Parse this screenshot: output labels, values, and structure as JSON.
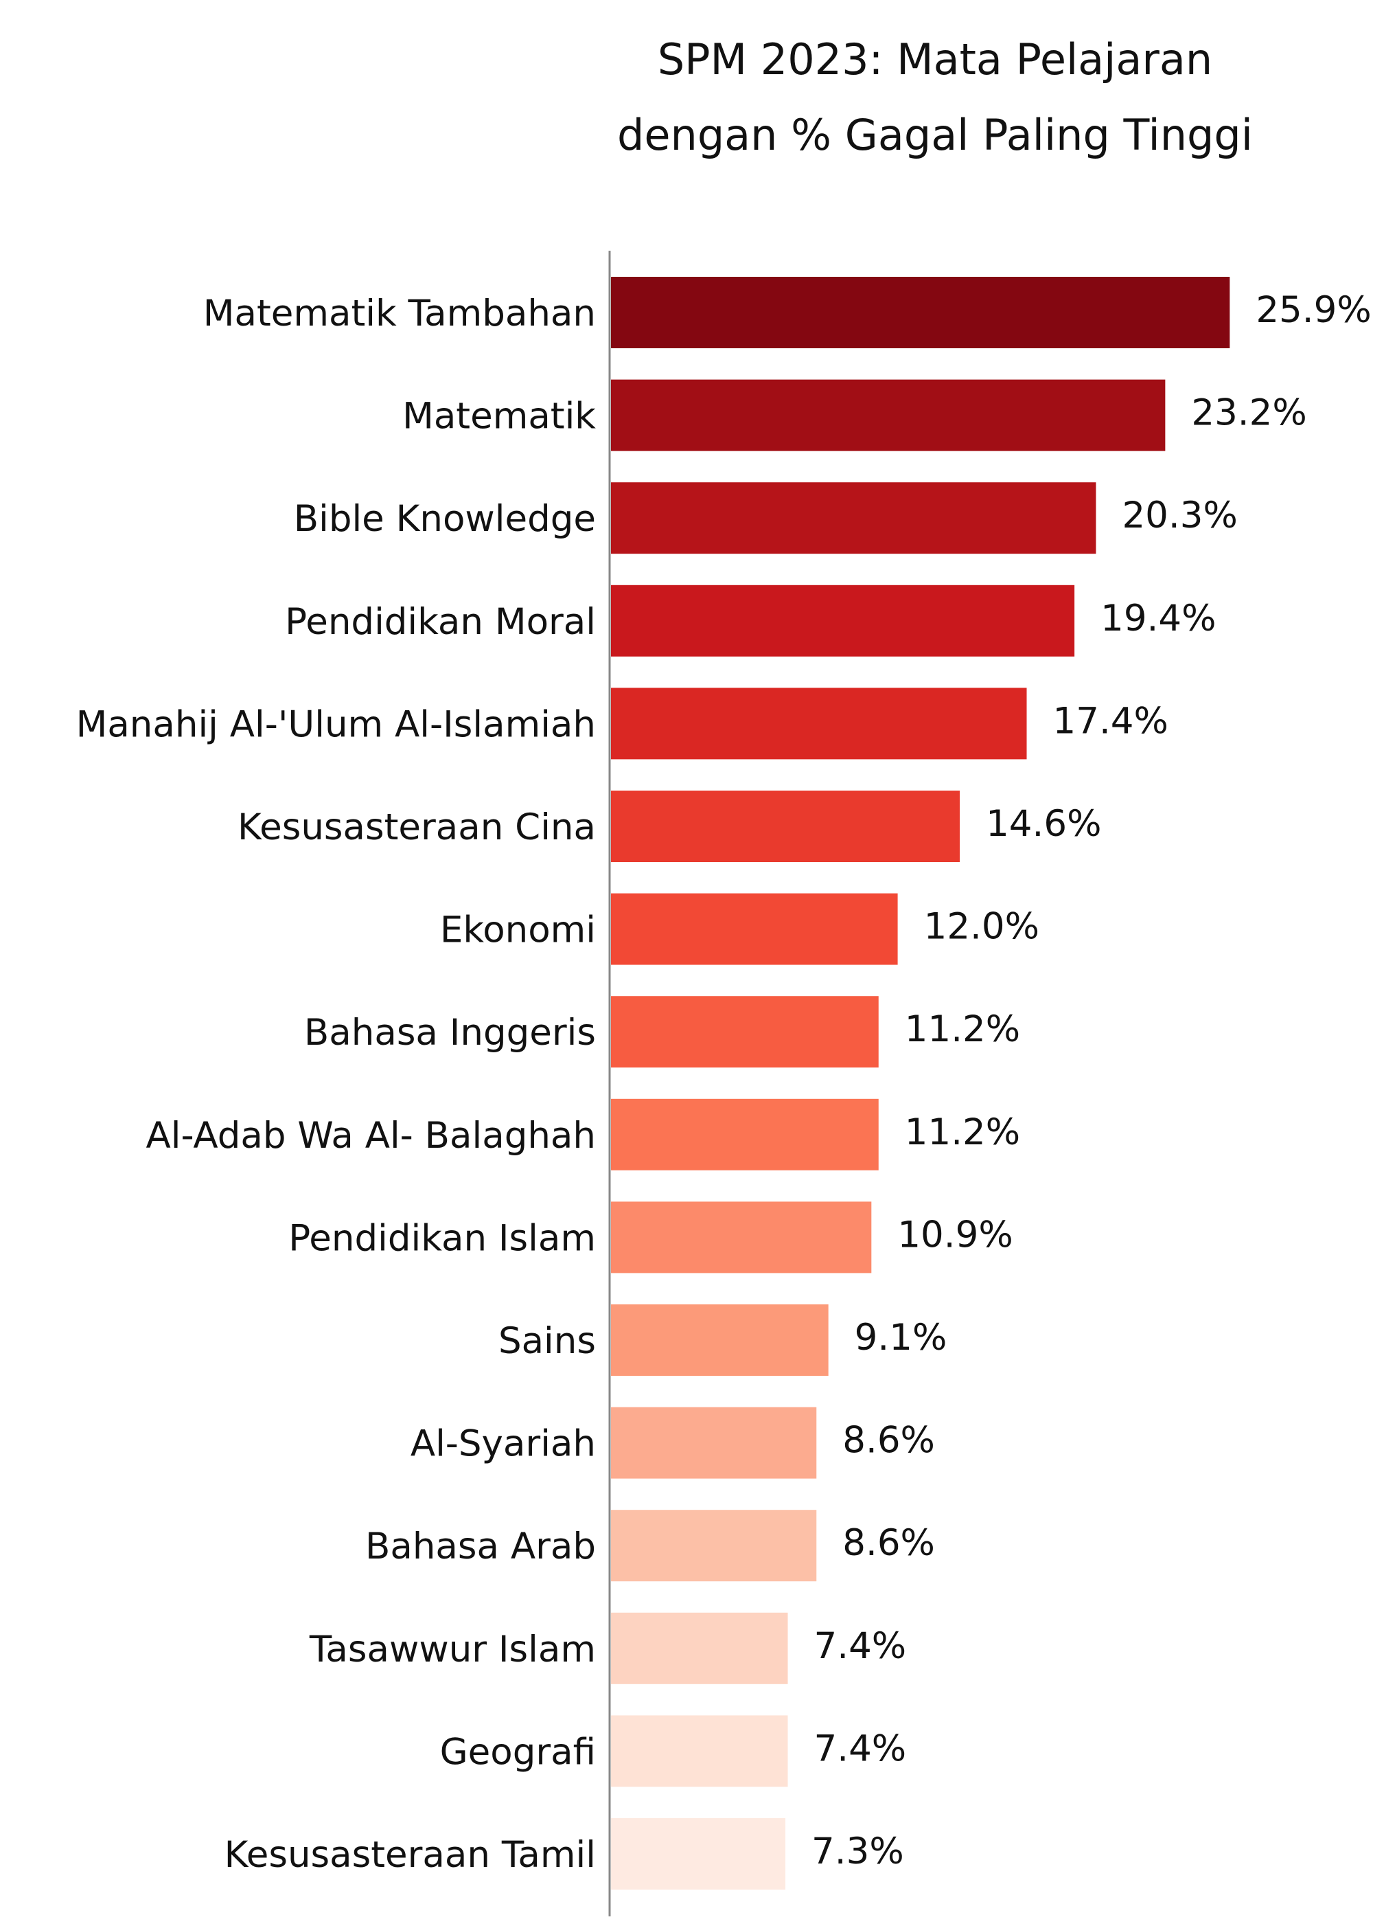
{
  "chart_data": {
    "type": "bar",
    "orientation": "horizontal",
    "title_lines": [
      "SPM 2023: Mata Pelajaran",
      "dengan % Gagal Paling Tinggi"
    ],
    "categories": [
      "Matematik Tambahan",
      "Matematik",
      "Bible Knowledge",
      "Pendidikan Moral",
      "Manahij Al-'Ulum Al-Islamiah",
      "Kesusasteraan Cina",
      "Ekonomi",
      "Bahasa Inggeris",
      "Al-Adab Wa Al- Balaghah",
      "Pendidikan Islam",
      "Sains",
      "Al-Syariah",
      "Bahasa Arab",
      "Tasawwur Islam",
      "Geografi",
      "Kesusasteraan Tamil"
    ],
    "values": [
      25.9,
      23.2,
      20.3,
      19.4,
      17.4,
      14.6,
      12.0,
      11.2,
      11.2,
      10.9,
      9.1,
      8.6,
      8.6,
      7.4,
      7.4,
      7.3
    ],
    "value_labels": [
      "25.9%",
      "23.2%",
      "20.3%",
      "19.4%",
      "17.4%",
      "14.6%",
      "12.0%",
      "11.2%",
      "11.2%",
      "10.9%",
      "9.1%",
      "8.6%",
      "8.6%",
      "7.4%",
      "7.4%",
      "7.3%"
    ],
    "bar_colors": [
      "#840711",
      "#a10e15",
      "#b61419",
      "#c9181d",
      "#da2723",
      "#e93a2d",
      "#f24935",
      "#f75c41",
      "#fb7453",
      "#fc8a6a",
      "#fc9a79",
      "#fcab8f",
      "#fcc0a7",
      "#fdd3c1",
      "#fee2d5",
      "#feeae1"
    ],
    "axis_color": "#888888",
    "xlim": [
      0,
      27.5
    ],
    "grid": false
  }
}
